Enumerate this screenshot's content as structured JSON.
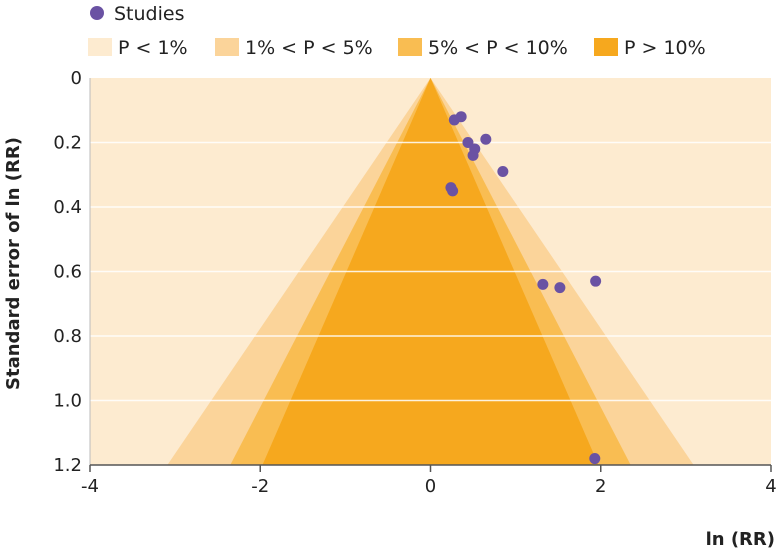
{
  "chart_data": {
    "type": "scatter",
    "subtype": "funnel-plot",
    "xlabel": "ln (RR)",
    "ylabel": "Standard error of ln (RR)",
    "xlim": [
      -4,
      4
    ],
    "ylim": [
      0,
      1.2
    ],
    "y_reversed": true,
    "x_ticks": [
      "-4",
      "-2",
      "0",
      "2",
      "4"
    ],
    "y_ticks": [
      "0",
      "0.2",
      "0.4",
      "0.6",
      "0.8",
      "1.0",
      "1.2"
    ],
    "grid": "horizontal",
    "legend_position": "top-left",
    "series": [
      {
        "name": "Studies",
        "color": "#6a52a3",
        "points": [
          {
            "x": 0.28,
            "y": 0.13
          },
          {
            "x": 0.36,
            "y": 0.12
          },
          {
            "x": 0.65,
            "y": 0.19
          },
          {
            "x": 0.44,
            "y": 0.2
          },
          {
            "x": 0.52,
            "y": 0.22
          },
          {
            "x": 0.5,
            "y": 0.24
          },
          {
            "x": 0.85,
            "y": 0.29
          },
          {
            "x": 0.24,
            "y": 0.34
          },
          {
            "x": 0.26,
            "y": 0.35
          },
          {
            "x": 1.32,
            "y": 0.64
          },
          {
            "x": 1.52,
            "y": 0.65
          },
          {
            "x": 1.94,
            "y": 0.63
          },
          {
            "x": 1.93,
            "y": 1.18
          }
        ]
      }
    ],
    "regions": [
      {
        "name": "P < 1%",
        "color": "#fdebd0",
        "z": null
      },
      {
        "name": "1% < P < 5%",
        "color": "#fbd49a",
        "z": 2.576
      },
      {
        "name": "5% < P < 10%",
        "color": "#f9bd52",
        "z": 1.96
      },
      {
        "name": "P > 10%",
        "color": "#f6a81e",
        "z": 1.645
      }
    ]
  }
}
